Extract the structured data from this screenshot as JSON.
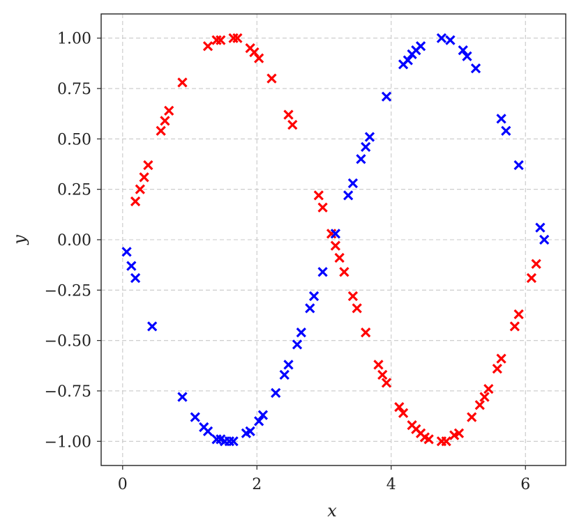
{
  "chart_data": {
    "type": "scatter",
    "title": "",
    "xlabel": "x",
    "ylabel": "y",
    "xlim": [
      -0.32,
      6.6
    ],
    "ylim": [
      -1.12,
      1.12
    ],
    "xticks": [
      0,
      2,
      4,
      6
    ],
    "xtick_labels": [
      "0",
      "2",
      "4",
      "6"
    ],
    "yticks": [
      -1.0,
      -0.75,
      -0.5,
      -0.25,
      0.0,
      0.25,
      0.5,
      0.75,
      1.0
    ],
    "ytick_labels": [
      "−1.00",
      "−0.75",
      "−0.50",
      "−0.25",
      "0.00",
      "0.25",
      "0.50",
      "0.75",
      "1.00"
    ],
    "grid": true,
    "marker": "x",
    "series": [
      {
        "color": "#ff0000",
        "points": [
          [
            0.19,
            0.19
          ],
          [
            0.26,
            0.25
          ],
          [
            0.32,
            0.31
          ],
          [
            0.38,
            0.37
          ],
          [
            0.57,
            0.54
          ],
          [
            0.63,
            0.59
          ],
          [
            0.69,
            0.64
          ],
          [
            0.89,
            0.78
          ],
          [
            1.27,
            0.96
          ],
          [
            1.4,
            0.99
          ],
          [
            1.46,
            0.99
          ],
          [
            1.65,
            1.0
          ],
          [
            1.71,
            1.0
          ],
          [
            1.9,
            0.95
          ],
          [
            1.96,
            0.93
          ],
          [
            2.03,
            0.9
          ],
          [
            2.22,
            0.8
          ],
          [
            2.47,
            0.62
          ],
          [
            2.53,
            0.57
          ],
          [
            2.92,
            0.22
          ],
          [
            2.98,
            0.16
          ],
          [
            3.11,
            0.03
          ],
          [
            3.17,
            -0.03
          ],
          [
            3.23,
            -0.09
          ],
          [
            3.3,
            -0.16
          ],
          [
            3.43,
            -0.28
          ],
          [
            3.49,
            -0.34
          ],
          [
            3.62,
            -0.46
          ],
          [
            3.81,
            -0.62
          ],
          [
            3.87,
            -0.67
          ],
          [
            3.93,
            -0.71
          ],
          [
            4.12,
            -0.83
          ],
          [
            4.18,
            -0.86
          ],
          [
            4.31,
            -0.92
          ],
          [
            4.37,
            -0.94
          ],
          [
            4.44,
            -0.96
          ],
          [
            4.5,
            -0.98
          ],
          [
            4.56,
            -0.99
          ],
          [
            4.75,
            -1.0
          ],
          [
            4.82,
            -1.0
          ],
          [
            4.94,
            -0.97
          ],
          [
            5.01,
            -0.96
          ],
          [
            5.2,
            -0.88
          ],
          [
            5.32,
            -0.82
          ],
          [
            5.39,
            -0.78
          ],
          [
            5.45,
            -0.74
          ],
          [
            5.58,
            -0.64
          ],
          [
            5.64,
            -0.59
          ],
          [
            5.84,
            -0.43
          ],
          [
            5.9,
            -0.37
          ],
          [
            6.09,
            -0.19
          ],
          [
            6.16,
            -0.12
          ]
        ]
      },
      {
        "color": "#0000ff",
        "points": [
          [
            0.06,
            -0.06
          ],
          [
            0.13,
            -0.13
          ],
          [
            0.19,
            -0.19
          ],
          [
            0.44,
            -0.43
          ],
          [
            0.89,
            -0.78
          ],
          [
            1.08,
            -0.88
          ],
          [
            1.21,
            -0.93
          ],
          [
            1.27,
            -0.95
          ],
          [
            1.4,
            -0.99
          ],
          [
            1.46,
            -0.99
          ],
          [
            1.52,
            -1.0
          ],
          [
            1.59,
            -1.0
          ],
          [
            1.65,
            -1.0
          ],
          [
            1.84,
            -0.96
          ],
          [
            1.9,
            -0.95
          ],
          [
            2.03,
            -0.9
          ],
          [
            2.09,
            -0.87
          ],
          [
            2.28,
            -0.76
          ],
          [
            2.41,
            -0.67
          ],
          [
            2.47,
            -0.62
          ],
          [
            2.6,
            -0.52
          ],
          [
            2.66,
            -0.46
          ],
          [
            2.79,
            -0.34
          ],
          [
            2.85,
            -0.28
          ],
          [
            2.98,
            -0.16
          ],
          [
            3.17,
            0.03
          ],
          [
            3.36,
            0.22
          ],
          [
            3.43,
            0.28
          ],
          [
            3.55,
            0.4
          ],
          [
            3.62,
            0.46
          ],
          [
            3.68,
            0.51
          ],
          [
            3.93,
            0.71
          ],
          [
            4.18,
            0.87
          ],
          [
            4.25,
            0.89
          ],
          [
            4.31,
            0.92
          ],
          [
            4.37,
            0.94
          ],
          [
            4.44,
            0.96
          ],
          [
            4.75,
            1.0
          ],
          [
            4.88,
            0.99
          ],
          [
            5.07,
            0.94
          ],
          [
            5.13,
            0.91
          ],
          [
            5.26,
            0.85
          ],
          [
            5.64,
            0.6
          ],
          [
            5.71,
            0.54
          ],
          [
            5.9,
            0.37
          ],
          [
            6.22,
            0.06
          ],
          [
            6.28,
            0.0
          ]
        ]
      }
    ]
  }
}
